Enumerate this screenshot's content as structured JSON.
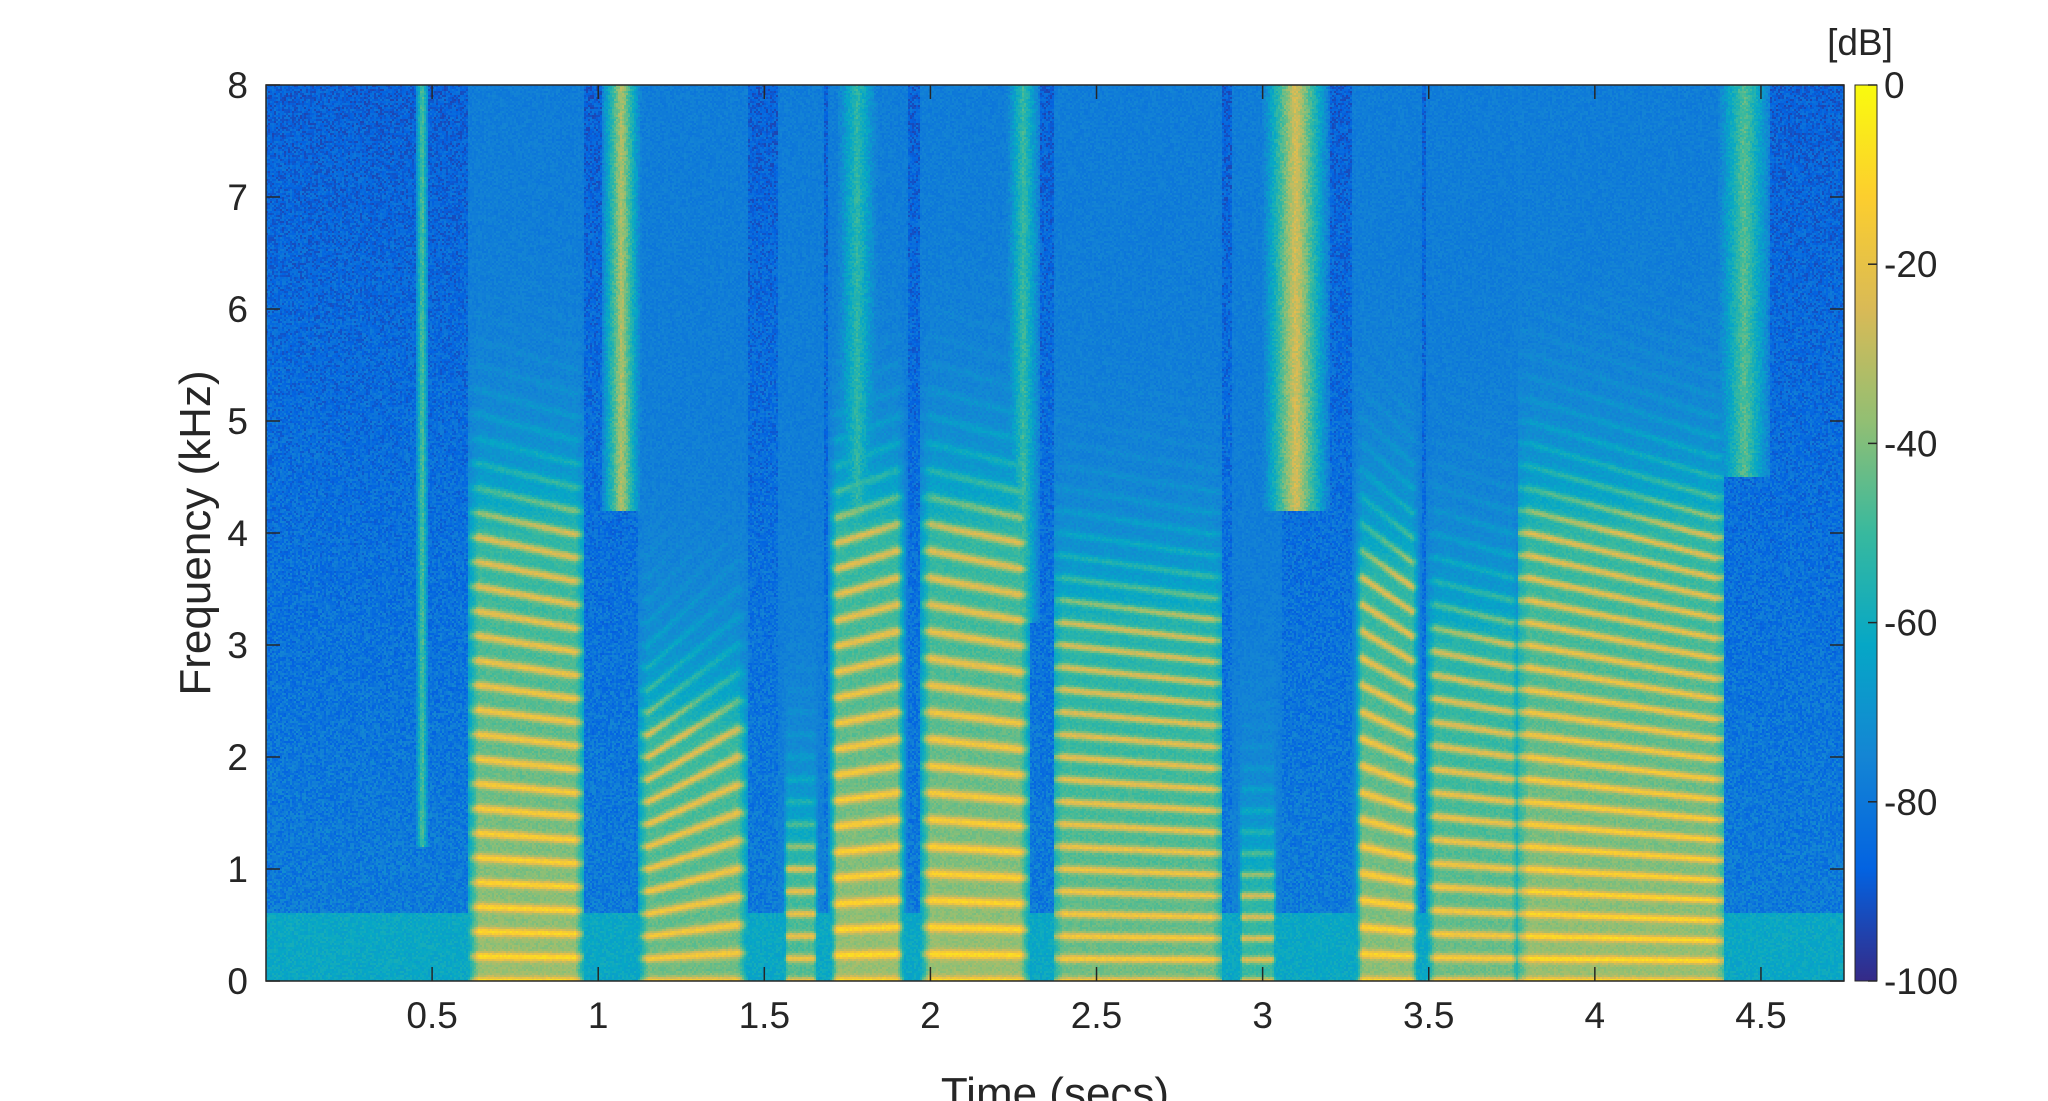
{
  "chart_data": {
    "type": "heatmap",
    "title": "",
    "xlabel": "Time (secs)",
    "ylabel": "Frequency (kHz)",
    "xlim": [
      0,
      4.75
    ],
    "ylim": [
      0,
      8
    ],
    "x_ticks": [
      0.5,
      1,
      1.5,
      2,
      2.5,
      3,
      3.5,
      4,
      4.5
    ],
    "x_tick_labels": [
      "0.5",
      "1",
      "1.5",
      "2",
      "2.5",
      "3",
      "3.5",
      "4",
      "4.5"
    ],
    "y_ticks": [
      0,
      1,
      2,
      3,
      4,
      5,
      6,
      7,
      8
    ],
    "y_tick_labels": [
      "0",
      "1",
      "2",
      "3",
      "4",
      "5",
      "6",
      "7",
      "8"
    ],
    "colorbar": {
      "unit_label": "[dB]",
      "range": [
        -100,
        0
      ],
      "ticks": [
        0,
        -20,
        -40,
        -60,
        -80,
        -100
      ],
      "tick_labels": [
        "0",
        "-20",
        "-40",
        "-60",
        "-80",
        "-100"
      ],
      "colormap": "parula"
    },
    "grid": false,
    "background_level_db": -78,
    "voiced_segments": [
      {
        "t_start": 0.64,
        "t_end": 0.93,
        "f0_hz": 220,
        "f0_end_hz": 210,
        "formant_top_khz": 4.0,
        "peak_db": -8
      },
      {
        "t_start": 1.15,
        "t_end": 1.42,
        "f0_hz": 200,
        "f0_end_hz": 250,
        "formant_top_khz": 2.2,
        "peak_db": -14
      },
      {
        "t_start": 1.57,
        "t_end": 1.65,
        "f0_hz": 200,
        "f0_end_hz": 200,
        "formant_top_khz": 1.0,
        "peak_db": -18
      },
      {
        "t_start": 1.72,
        "t_end": 1.9,
        "f0_hz": 230,
        "f0_end_hz": 240,
        "formant_top_khz": 4.0,
        "peak_db": -8
      },
      {
        "t_start": 2.0,
        "t_end": 2.27,
        "f0_hz": 240,
        "f0_end_hz": 230,
        "formant_top_khz": 4.0,
        "peak_db": -8
      },
      {
        "t_start": 2.4,
        "t_end": 2.85,
        "f0_hz": 200,
        "f0_end_hz": 190,
        "formant_top_khz": 3.2,
        "peak_db": -14
      },
      {
        "t_start": 2.94,
        "t_end": 3.03,
        "f0_hz": 190,
        "f0_end_hz": 190,
        "formant_top_khz": 0.8,
        "peak_db": -22
      },
      {
        "t_start": 3.3,
        "t_end": 3.45,
        "f0_hz": 240,
        "f0_end_hz": 220,
        "formant_top_khz": 3.6,
        "peak_db": -10
      },
      {
        "t_start": 3.52,
        "t_end": 3.75,
        "f0_hz": 210,
        "f0_end_hz": 200,
        "formant_top_khz": 3.0,
        "peak_db": -14
      },
      {
        "t_start": 3.8,
        "t_end": 4.36,
        "f0_hz": 200,
        "f0_end_hz": 180,
        "formant_top_khz": 4.0,
        "peak_db": -8
      }
    ],
    "fricative_bursts": [
      {
        "t": 0.47,
        "width": 0.02,
        "f_low_khz": 1.5,
        "f_high_khz": 8,
        "peak_db": -45
      },
      {
        "t": 1.07,
        "width": 0.06,
        "f_low_khz": 4.5,
        "f_high_khz": 8,
        "peak_db": -32
      },
      {
        "t": 3.1,
        "width": 0.1,
        "f_low_khz": 4.5,
        "f_high_khz": 8,
        "peak_db": -25
      },
      {
        "t": 4.45,
        "width": 0.08,
        "f_low_khz": 4.8,
        "f_high_khz": 8,
        "peak_db": -45
      },
      {
        "t": 2.28,
        "width": 0.05,
        "f_low_khz": 3.5,
        "f_high_khz": 8,
        "peak_db": -50
      },
      {
        "t": 1.78,
        "width": 0.06,
        "f_low_khz": 4,
        "f_high_khz": 8,
        "peak_db": -52
      }
    ]
  }
}
